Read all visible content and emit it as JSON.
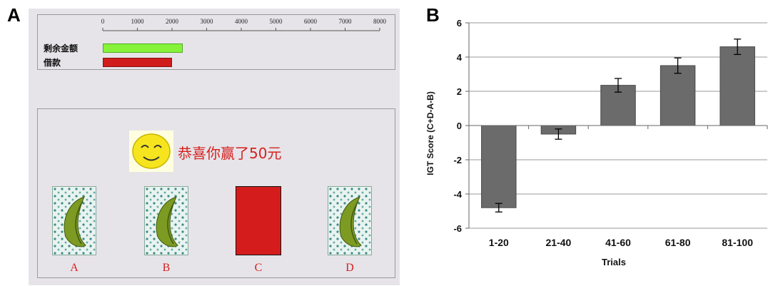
{
  "panels": {
    "a": "A",
    "b": "B"
  },
  "game_screen": {
    "scale_ticks": [
      "0",
      "1000",
      "2000",
      "3000",
      "4000",
      "5000",
      "6000",
      "7000",
      "8000"
    ],
    "rows": [
      {
        "label": "剩余金额",
        "value": 2300,
        "color": "#86f23a"
      },
      {
        "label": "借款",
        "value": 2000,
        "color": "#d01c1c"
      }
    ],
    "message": "恭喜你赢了50元",
    "cards": [
      {
        "letter": "A",
        "state": "back"
      },
      {
        "letter": "B",
        "state": "back"
      },
      {
        "letter": "C",
        "state": "selected"
      },
      {
        "letter": "D",
        "state": "back"
      }
    ]
  },
  "chart_data": {
    "type": "bar",
    "categories": [
      "1-20",
      "21-40",
      "41-60",
      "61-80",
      "81-100"
    ],
    "values": [
      -4.8,
      -0.5,
      2.35,
      3.5,
      4.6
    ],
    "error": [
      0.25,
      0.3,
      0.4,
      0.45,
      0.45
    ],
    "xlabel": "Trials",
    "ylabel": "IGT Score (C+D-A-B)",
    "ylim": [
      -6,
      6
    ],
    "yticks": [
      "-6",
      "-4",
      "-2",
      "0",
      "2",
      "4",
      "6"
    ],
    "grid": true,
    "bar_color": "#6b6b6b"
  }
}
